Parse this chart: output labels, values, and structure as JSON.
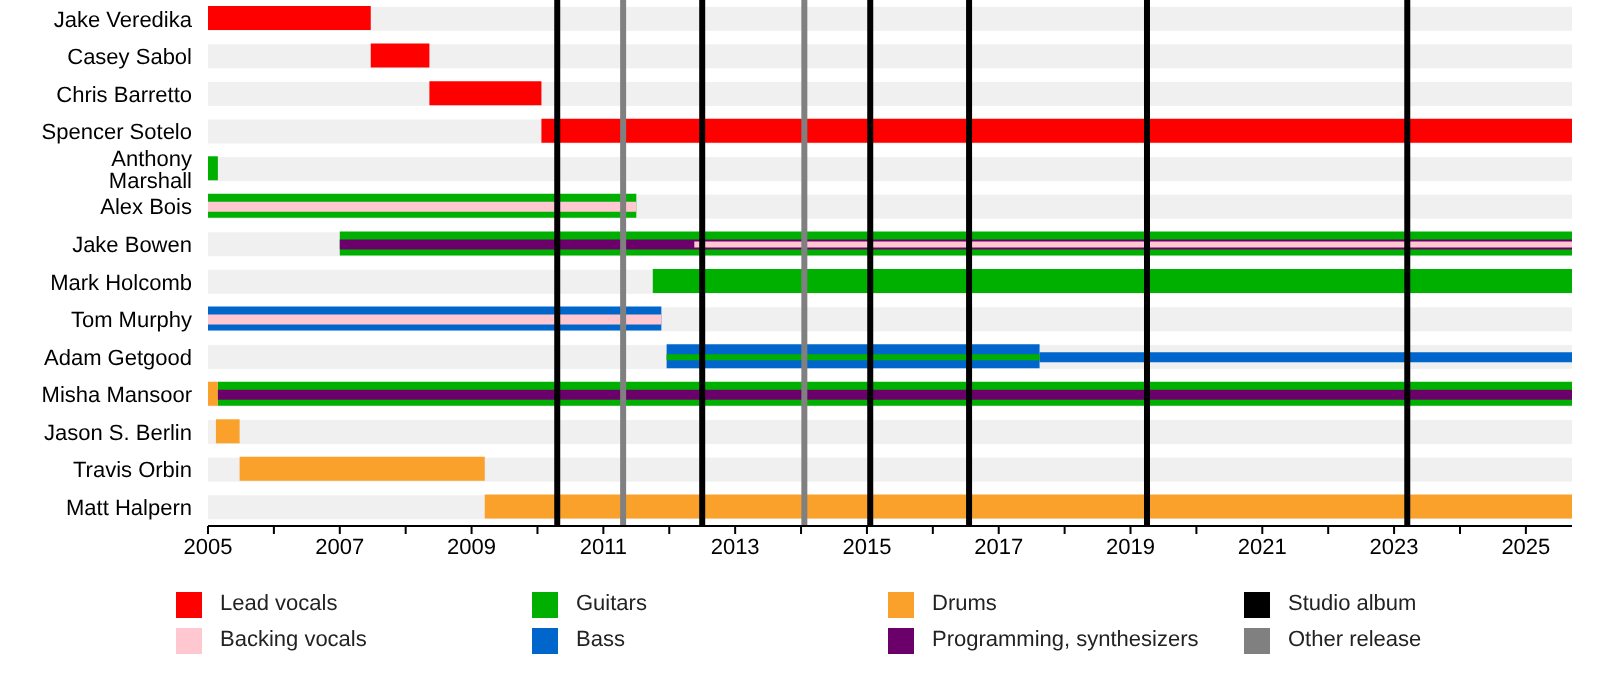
{
  "chart_data": {
    "type": "bar",
    "orientation": "horizontal",
    "categories": [
      "Jake Veredika",
      "Casey Sabol",
      "Chris Barretto",
      "Spencer Sotelo",
      "Anthony Marshall",
      "Alex Bois",
      "Jake Bowen",
      "Mark Holcomb",
      "Tom Murphy",
      "Adam Getgood",
      "Misha Mansoor",
      "Jason S. Berlin",
      "Travis Orbin",
      "Matt Halpern"
    ],
    "series": [
      {
        "name": "Lead vocals",
        "color": "#ff0000",
        "base": [
          2005,
          2007.47,
          2008.36,
          2010.06,
          null,
          null,
          null,
          null,
          null,
          null,
          null,
          null,
          null,
          null
        ],
        "values": [
          2.47,
          0.89,
          1.7,
          15.64,
          null,
          null,
          null,
          null,
          null,
          null,
          null,
          null,
          null,
          null
        ]
      },
      {
        "name": "Backing vocals",
        "color": "#ffc8d0",
        "base": [
          null,
          null,
          null,
          null,
          null,
          null,
          2012.38,
          null,
          null,
          null,
          null,
          null,
          null,
          null
        ],
        "values": [
          null,
          null,
          null,
          null,
          null,
          null,
          13.32,
          null,
          null,
          null,
          null,
          null,
          null,
          null
        ]
      },
      {
        "name": "Guitars",
        "color": "#00b000",
        "base": [
          null,
          null,
          null,
          null,
          2005,
          2005,
          2007,
          2011.75,
          null,
          null,
          2005.15,
          null,
          null,
          null
        ],
        "values": [
          null,
          null,
          null,
          null,
          0.15,
          6.5,
          18.7,
          13.95,
          null,
          null,
          20.55,
          null,
          null,
          null
        ]
      },
      {
        "name": "Bass",
        "color": "#0066cc",
        "base": [
          null,
          null,
          null,
          null,
          null,
          null,
          null,
          null,
          2005,
          2011.96,
          null,
          null,
          null,
          null
        ],
        "values": [
          null,
          null,
          null,
          null,
          null,
          null,
          null,
          null,
          6.88,
          5.66,
          null,
          null,
          null,
          null
        ]
      },
      {
        "name": "Drums",
        "color": "#f9a12a",
        "base": [
          null,
          null,
          null,
          null,
          null,
          null,
          null,
          null,
          null,
          null,
          2005,
          2005.12,
          2005.48,
          2009.2
        ],
        "values": [
          null,
          null,
          null,
          null,
          null,
          null,
          null,
          null,
          null,
          null,
          0.15,
          0.36,
          3.72,
          16.5
        ]
      },
      {
        "name": "Programming, synthesizers",
        "color": "#6b006b",
        "base": [
          null,
          null,
          null,
          null,
          null,
          null,
          2007,
          null,
          null,
          null,
          2005.15,
          null,
          null,
          null
        ],
        "values": [
          null,
          null,
          null,
          null,
          null,
          null,
          18.7,
          null,
          null,
          null,
          20.55,
          null,
          null,
          null
        ]
      },
      {
        "color": "#ffc8d0",
        "base": [
          null,
          null,
          null,
          null,
          null,
          2005,
          null,
          null,
          2005,
          null,
          null,
          null,
          null,
          null
        ],
        "values": [
          null,
          null,
          null,
          null,
          null,
          6.5,
          null,
          null,
          6.88,
          null,
          null,
          null,
          null,
          null
        ]
      },
      {
        "color": "#00b000",
        "base": [
          null,
          null,
          null,
          null,
          null,
          null,
          null,
          null,
          null,
          2011.96,
          null,
          null,
          null,
          null
        ],
        "values": [
          null,
          null,
          null,
          null,
          null,
          null,
          null,
          null,
          null,
          5.66,
          null,
          null,
          null,
          null
        ]
      },
      {
        "color": "#0066cc",
        "base": [
          null,
          null,
          null,
          null,
          null,
          null,
          null,
          null,
          null,
          2017.62,
          null,
          null,
          null,
          null
        ],
        "values": [
          null,
          null,
          null,
          null,
          null,
          null,
          null,
          null,
          null,
          8.08,
          null,
          null,
          null,
          null
        ]
      }
    ],
    "xlim": [
      2005,
      2025.7
    ],
    "xticks": [
      2005,
      {
        "value": 2006,
        "label": null
      },
      2007,
      {
        "value": 2008,
        "label": null
      },
      2009,
      {
        "value": 2010,
        "label": null
      },
      2011,
      {
        "value": 2012,
        "label": null
      },
      2013,
      {
        "value": 2014,
        "label": null
      },
      2015,
      {
        "value": 2016,
        "label": null
      },
      2017,
      {
        "value": 2018,
        "label": null
      },
      2019,
      {
        "value": 2020,
        "label": null
      },
      2021,
      {
        "value": 2022,
        "label": null
      },
      2023,
      {
        "value": 2024,
        "label": null
      },
      2025
    ],
    "ref_lines": [
      {
        "axis": "x",
        "value": 2010.3,
        "label": "Studio album",
        "color": "#000000"
      },
      {
        "axis": "x",
        "value": 2012.5,
        "color": "#000000"
      },
      {
        "axis": "x",
        "value": 2015.05,
        "color": "#000000"
      },
      {
        "axis": "x",
        "value": 2016.55,
        "color": "#000000"
      },
      {
        "axis": "x",
        "value": 2019.25,
        "color": "#000000"
      },
      {
        "axis": "x",
        "value": 2023.2,
        "color": "#000000"
      },
      {
        "axis": "x",
        "value": 2011.3,
        "label": "Other release",
        "color": "#808080"
      },
      {
        "axis": "x",
        "value": 2014.05,
        "color": "#808080"
      }
    ],
    "legend": "bottom"
  }
}
